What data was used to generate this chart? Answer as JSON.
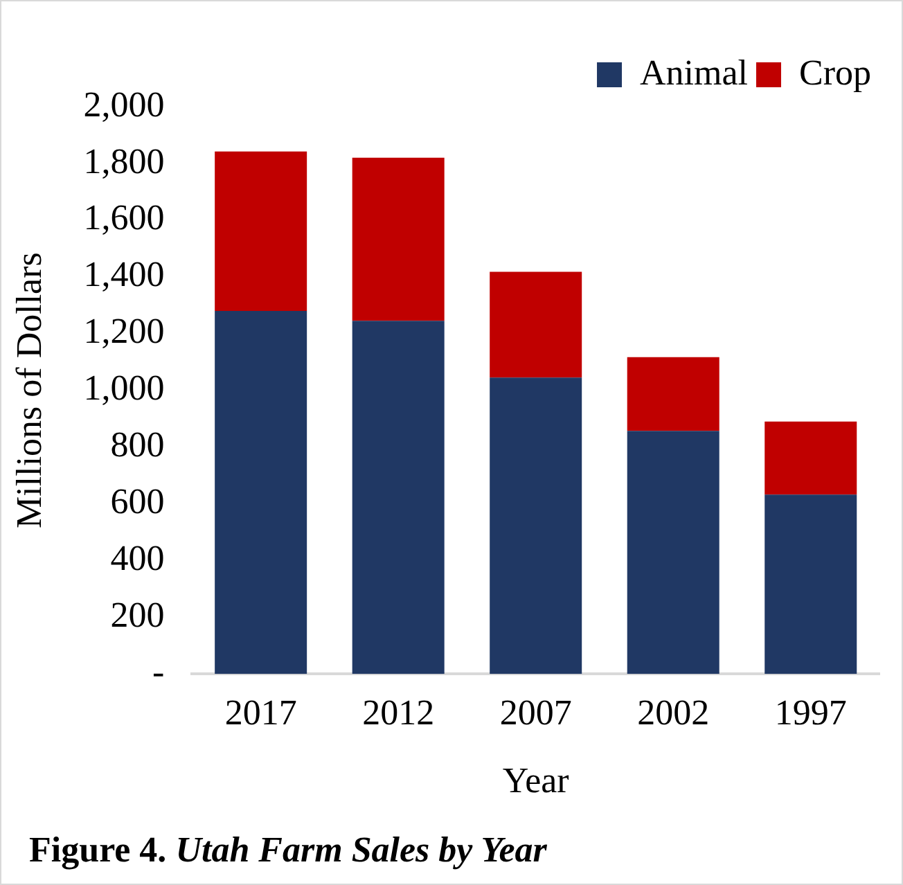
{
  "chart_data": {
    "type": "bar",
    "stacked": true,
    "title": "Figure 4. Utah Farm Sales by Year",
    "xlabel": "Year",
    "ylabel": "Millions of Dollars",
    "categories": [
      "2017",
      "2012",
      "2007",
      "2002",
      "1997"
    ],
    "series": [
      {
        "name": "Animal",
        "color": "#203864",
        "values": [
          1280,
          1245,
          1045,
          857,
          632
        ]
      },
      {
        "name": "Crop",
        "color": "#c00000",
        "values": [
          562,
          575,
          373,
          260,
          258
        ]
      }
    ],
    "ylim": [
      0,
      2000
    ],
    "yticks": [
      {
        "value": 0,
        "label": "-"
      },
      200,
      400,
      600,
      800,
      {
        "value": 1000,
        "label": "1,000"
      },
      {
        "value": 1200,
        "label": "1,200"
      },
      {
        "value": 1400,
        "label": "1,400"
      },
      {
        "value": 1600,
        "label": "1,600"
      },
      {
        "value": 1800,
        "label": "1,800"
      },
      {
        "value": 2000,
        "label": "2,000"
      }
    ],
    "grid": false,
    "legend": "top right"
  }
}
